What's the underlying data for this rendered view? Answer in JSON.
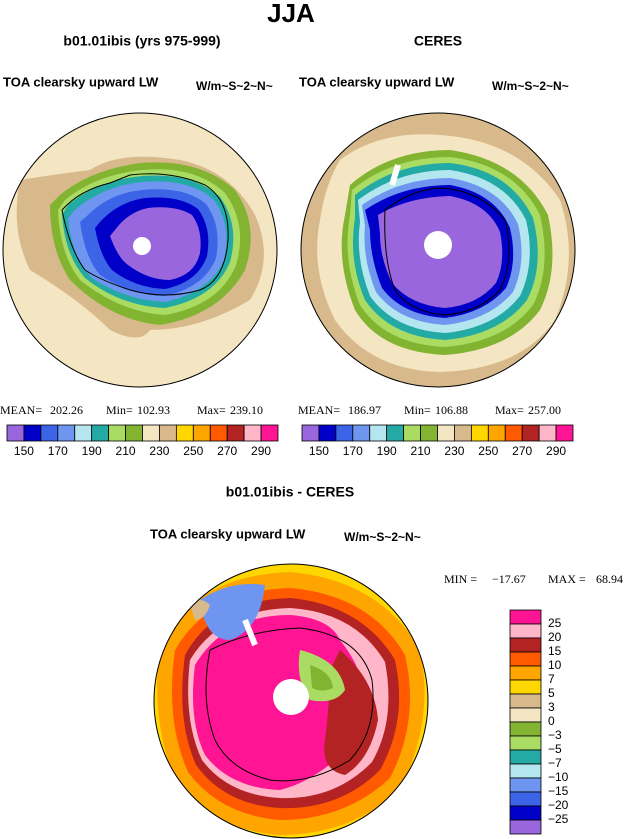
{
  "title": "JJA",
  "panels": [
    {
      "title": "b01.01ibis (yrs 975-999)",
      "variable": "TOA clearsky upward LW",
      "units": "W/m~S~2~N~",
      "stats": [
        {
          "label": "MEAN=",
          "value": "202.26"
        },
        {
          "label": "Min=",
          "value": "102.93"
        },
        {
          "label": "Max=",
          "value": "239.10"
        }
      ]
    },
    {
      "title": "CERES",
      "variable": "TOA clearsky upward LW",
      "units": "W/m~S~2~N~",
      "stats": [
        {
          "label": "MEAN=",
          "value": "186.97"
        },
        {
          "label": "Min=",
          "value": "106.88"
        },
        {
          "label": "Max=",
          "value": "257.00"
        }
      ]
    }
  ],
  "colorbar": {
    "colors": [
      "#9966dd",
      "#0000c8",
      "#3c64e6",
      "#6e96f0",
      "#b4e6f0",
      "#23aaa5",
      "#aadc64",
      "#82b432",
      "#f5e6c3",
      "#d7b98c",
      "#ffd700",
      "#ffa500",
      "#ff5a00",
      "#b42323",
      "#ffb6c8",
      "#ff1493"
    ],
    "labels": [
      "150",
      "170",
      "190",
      "210",
      "230",
      "250",
      "270",
      "290"
    ]
  },
  "difference": {
    "title": "b01.01ibis - CERES",
    "variable": "TOA clearsky upward LW",
    "units": "W/m~S~2~N~",
    "stats": [
      {
        "label": "MIN =",
        "value": "−17.67"
      },
      {
        "label": "MAX =",
        "value": "68.94"
      }
    ],
    "colorbar": {
      "colors": [
        "#ff1493",
        "#ffb6c8",
        "#b42323",
        "#ff5a00",
        "#ffa500",
        "#ffd700",
        "#d7b98c",
        "#f5e6c3",
        "#82b432",
        "#aadc64",
        "#23aaa5",
        "#b4e6f0",
        "#6e96f0",
        "#3c64e6",
        "#0000c8",
        "#9966dd"
      ],
      "labels": [
        "25",
        "20",
        "15",
        "10",
        "7",
        "5",
        "3",
        "0",
        "−3",
        "−5",
        "−7",
        "−10",
        "−15",
        "−20",
        "−25"
      ]
    }
  }
}
